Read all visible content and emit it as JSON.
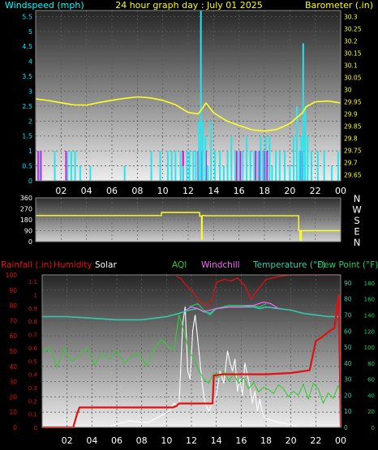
{
  "chart_data": [
    {
      "type": "line",
      "title": "24 hour graph day : July 01 2025",
      "left_axis_label": "Windspeed (mph)",
      "right_axis_label": "Barometer (.in)",
      "x_ticks": [
        "02",
        "04",
        "06",
        "08",
        "10",
        "12",
        "14",
        "16",
        "18",
        "20",
        "22",
        "00"
      ],
      "left_ticks": [
        "0",
        "0.5",
        "1",
        "1.5",
        "2",
        "2.5",
        "3",
        "3.5",
        "4",
        "4.5",
        "5",
        "5.5"
      ],
      "right_ticks": [
        "29.65",
        "29.7",
        "29.75",
        "29.8",
        "29.85",
        "29.9",
        "29.95",
        "30",
        "30.05",
        "30.1",
        "30.15",
        "30.2",
        "30.25",
        "30.3"
      ],
      "left_range": [
        0,
        5.7
      ],
      "right_range": [
        29.625,
        30.325
      ],
      "barometer": {
        "hours": [
          0,
          1,
          2,
          3,
          4,
          5,
          6,
          7,
          8,
          9,
          10,
          11,
          12,
          12.8,
          13.4,
          14,
          15,
          16,
          17,
          18,
          19,
          20,
          21,
          21.3,
          22,
          23,
          24
        ],
        "values": [
          29.962,
          29.955,
          29.946,
          29.937,
          29.936,
          29.947,
          29.956,
          29.964,
          29.97,
          29.966,
          29.956,
          29.938,
          29.906,
          29.9,
          29.945,
          29.905,
          29.872,
          29.853,
          29.835,
          29.829,
          29.837,
          29.86,
          29.905,
          29.93,
          29.95,
          29.953,
          29.945
        ]
      },
      "windspeed": {
        "hours": [
          0.3,
          1.5,
          2.5,
          2.8,
          3.1,
          3.5,
          4.3,
          7.0,
          9.1,
          9.8,
          10.4,
          10.7,
          11.0,
          11.4,
          11.6,
          11.9,
          12.1,
          12.4,
          12.6,
          12.85,
          13.0,
          13.15,
          13.35,
          13.55,
          13.8,
          14.1,
          14.5,
          14.8,
          15.1,
          15.4,
          15.7,
          16.0,
          16.3,
          16.6,
          16.9,
          17.2,
          17.5,
          17.7,
          17.9,
          18.1,
          18.4,
          18.6,
          18.9,
          19.2,
          19.6,
          20.0,
          20.3,
          20.55,
          20.75,
          20.9,
          21.05,
          21.2,
          21.4,
          21.7,
          22.2,
          22.7,
          23.3,
          23.8
        ],
        "values": [
          1,
          1,
          1,
          1,
          1,
          0.5,
          0.5,
          0.5,
          1,
          1,
          1,
          1,
          1,
          1,
          0.5,
          1,
          1,
          1,
          1,
          2,
          5.7,
          2,
          1.5,
          0.5,
          2,
          1,
          1,
          0.5,
          1,
          1.5,
          1,
          1,
          1,
          1.5,
          1,
          1,
          1,
          1.5,
          1,
          1.5,
          1.5,
          0.5,
          1,
          1,
          1,
          0.5,
          1.5,
          2.5,
          1,
          1.5,
          4.6,
          2.5,
          1.5,
          1,
          1,
          1,
          0.5,
          1
        ]
      },
      "gust_hours": [
        0.2,
        0.4,
        2.4,
        11.6,
        12.8,
        13.1,
        13.4,
        15.8,
        16.1,
        17.3,
        17.6,
        17.9,
        18.0,
        18.2,
        20.8,
        21.0
      ]
    },
    {
      "type": "line",
      "title": "",
      "ticks": [
        "0",
        "90",
        "180",
        "270",
        "360"
      ],
      "range": [
        0,
        360
      ],
      "compass": [
        "N",
        "W",
        "S",
        "E",
        "N"
      ],
      "direction": {
        "hours": [
          0,
          9.9,
          9.9,
          12.9,
          12.9,
          13.05,
          13.05,
          13.1,
          13.1,
          13.3,
          13.3,
          20.7,
          20.7,
          20.8,
          20.8,
          20.9,
          20.9,
          24
        ],
        "values": [
          215,
          215,
          240,
          240,
          210,
          210,
          20,
          20,
          215,
          215,
          213,
          213,
          90,
          90,
          10,
          10,
          90,
          90
        ]
      }
    },
    {
      "type": "line",
      "title": "",
      "legend": [
        "Rainfall (.in)",
        "Humidity",
        "Solar",
        "AQI",
        "Windchill",
        "Temperature (°F)",
        "Dew Point (°F)"
      ],
      "x_ticks": [
        "02",
        "04",
        "06",
        "08",
        "10",
        "12",
        "14",
        "16",
        "18",
        "20",
        "22",
        "00"
      ],
      "humidity_ticks": [
        "0",
        "10",
        "20",
        "30",
        "40",
        "50",
        "60",
        "70",
        "80",
        "90",
        "100"
      ],
      "rainfall_ticks": [
        "0",
        "0.1",
        "0.2",
        "0.3",
        "0.4",
        "0.5",
        "0.6",
        "0.7",
        "0.8",
        "0.9",
        "1",
        "1.1"
      ],
      "temp_ticks": [
        "0",
        "10",
        "20",
        "30",
        "40",
        "50",
        "60",
        "70",
        "80",
        "90"
      ],
      "solar_ticks": [
        "0",
        "20",
        "40",
        "60",
        "80",
        "100",
        "120",
        "140",
        "160",
        "180"
      ],
      "rainfall": {
        "hours": [
          0,
          2.5,
          2.8,
          3.0,
          3.2,
          10.5,
          10.8,
          11.0,
          11.6,
          13.0,
          13.7,
          13.8,
          14.5,
          17.0,
          18.0,
          20.0,
          21.5,
          22.0,
          22.5,
          23.0,
          23.5,
          23.85,
          24
        ],
        "values": [
          0,
          0,
          0.1,
          0.15,
          0.15,
          0.15,
          0.16,
          0.18,
          0.18,
          0.18,
          0.18,
          0.39,
          0.4,
          0.4,
          0.4,
          0.41,
          0.43,
          0.65,
          0.68,
          0.72,
          0.75,
          1.0,
          0.0
        ]
      },
      "humidity": {
        "hours": [
          10.8,
          11.1,
          11.6,
          12.1,
          12.5,
          12.9,
          13.4,
          13.7,
          14.0,
          14.6,
          15.2,
          15.7,
          16.3,
          16.8,
          17.3,
          18.0,
          18.5,
          19.0,
          20.0,
          21.0,
          22.0,
          23.0,
          24.0
        ],
        "values": [
          99,
          98,
          93,
          89,
          84,
          81,
          80,
          85,
          95,
          97,
          96,
          98,
          93,
          84,
          90,
          97,
          98,
          99,
          100,
          100,
          100,
          100,
          100
        ]
      },
      "temperature": {
        "hours": [
          0,
          2,
          4,
          6,
          8,
          9,
          10,
          11,
          11.8,
          12.5,
          13,
          13.5,
          14,
          15,
          16,
          17,
          17.5,
          18,
          19,
          20,
          21,
          22,
          23,
          24
        ],
        "values": [
          69,
          69,
          68,
          67,
          67,
          68,
          69,
          71,
          73,
          74,
          72,
          71,
          74,
          75,
          75,
          75,
          74,
          75,
          74,
          73,
          71,
          70,
          69,
          69
        ]
      },
      "dewpoint": {
        "hours": [
          11.8,
          12.5,
          13.0,
          13.5,
          14.0,
          15.0,
          16.0,
          16.8,
          17.5,
          18.0
        ],
        "values": [
          75,
          77,
          73,
          70,
          74,
          76,
          76,
          76,
          75,
          77
        ]
      },
      "windchill": {
        "hours": [
          11.5,
          12.0,
          12.5,
          13.0,
          14.0,
          15.0,
          16.0,
          17.0,
          17.8,
          18.4,
          19.0
        ],
        "values": [
          73,
          75,
          74,
          72,
          74,
          75,
          75,
          76,
          78,
          77,
          74
        ]
      },
      "aqi": {
        "hours": [
          0,
          0.6,
          1.2,
          1.8,
          2.4,
          3.0,
          3.6,
          4.2,
          4.8,
          5.4,
          6.0,
          6.6,
          7.2,
          7.8,
          8.4,
          9.0,
          9.6,
          10.2,
          10.6,
          11.0,
          11.4,
          11.8,
          12.2,
          12.6,
          13.0,
          13.4,
          13.8,
          14.2,
          14.6,
          15.0,
          15.4,
          15.8,
          16.2,
          16.6,
          17.0,
          17.4,
          17.8,
          18.2,
          18.6,
          19.0,
          19.4,
          19.8,
          20.2,
          20.6,
          21.0,
          21.4,
          21.8,
          22.2,
          22.6,
          23.0,
          23.4,
          23.8,
          24.0
        ],
        "values": [
          95,
          100,
          75,
          98,
          82,
          90,
          100,
          78,
          92,
          85,
          96,
          80,
          88,
          92,
          76,
          98,
          110,
          100,
          96,
          140,
          120,
          95,
          85,
          70,
          60,
          55,
          68,
          62,
          70,
          58,
          66,
          55,
          62,
          48,
          56,
          44,
          50,
          47,
          42,
          53,
          48,
          38,
          45,
          40,
          54,
          35,
          55,
          48,
          30,
          43,
          36,
          52,
          45
        ]
      },
      "solar": {
        "hours": [
          5.5,
          7.0,
          8.5,
          9.5,
          10.2,
          10.6,
          11.0,
          11.3,
          11.5,
          11.7,
          11.9,
          12.1,
          12.3,
          12.5,
          12.7,
          12.9,
          13.1,
          13.4,
          13.7,
          14.0,
          14.3,
          14.6,
          14.9,
          15.1,
          15.3,
          15.5,
          15.7,
          15.9,
          16.1,
          16.3,
          16.5,
          16.7,
          16.9,
          17.1,
          17.3,
          17.5,
          17.7,
          17.9,
          18.2,
          18.6,
          19.0,
          19.5,
          20.0,
          20.5
        ],
        "values": [
          2,
          8,
          6,
          14,
          20,
          30,
          26,
          130,
          150,
          70,
          60,
          120,
          140,
          110,
          80,
          50,
          30,
          20,
          30,
          40,
          70,
          55,
          95,
          80,
          70,
          85,
          45,
          60,
          40,
          80,
          65,
          50,
          30,
          45,
          20,
          35,
          18,
          12,
          10,
          8,
          6,
          5,
          3,
          1
        ]
      },
      "colors": {
        "rainfall": "#e01010",
        "humidity": "#e01010",
        "solar": "#ffffff",
        "aqi": "#33cc33",
        "windchill": "#ff66ff",
        "temperature": "#33ccaa",
        "dewpoint": "#22cc66"
      }
    }
  ]
}
